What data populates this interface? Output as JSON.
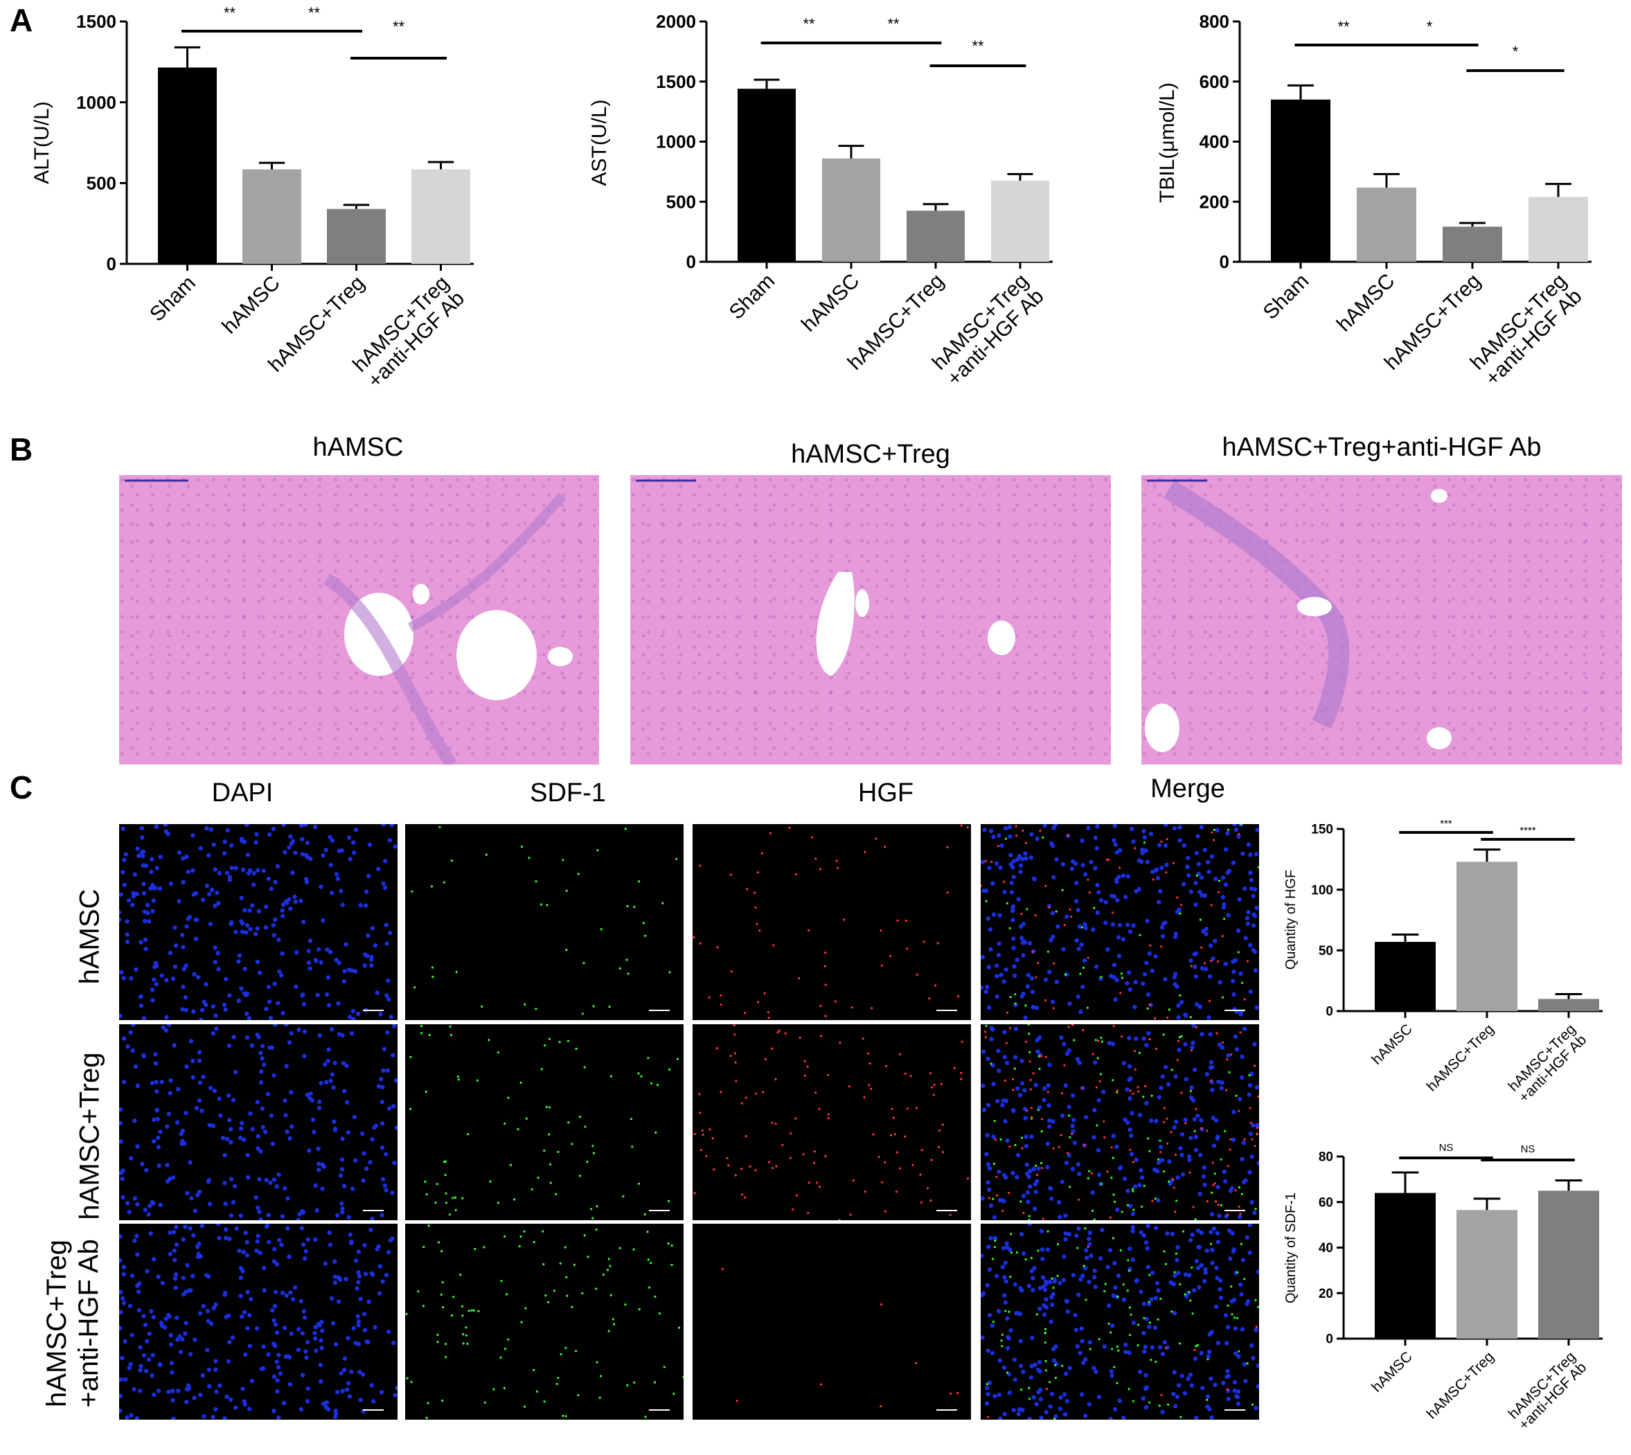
{
  "panel_labels": {
    "a": "A",
    "b": "B",
    "c": "C"
  },
  "he_titles": [
    "hAMSC",
    "hAMSC+Treg",
    "hAMSC+Treg+anti-HGF Ab"
  ],
  "if_columns": [
    "DAPI",
    "SDF-1",
    "HGF",
    "Merge"
  ],
  "if_rows": [
    {
      "line1": "hAMSC",
      "line2": ""
    },
    {
      "line1": "hAMSC+Treg",
      "line2": ""
    },
    {
      "line1": "hAMSC+Treg",
      "line2": "+anti-HGF Ab"
    }
  ],
  "colors": {
    "black": "#000000",
    "dark_gray": "#7f7f7f",
    "mid_gray": "#a3a3a6",
    "light_gray": "#d6d6d6",
    "he_pink": "#e79ad9",
    "dapi_blue": "#1a2fe0",
    "sdf_green": "#33ff33",
    "hgf_red": "#ff3344"
  },
  "chart_data": [
    {
      "type": "bar",
      "ylabel": "ALT(U/L)",
      "ylim": [
        0,
        1500
      ],
      "yticks": [
        0,
        500,
        1000,
        1500
      ],
      "categories": [
        [
          "Sham"
        ],
        [
          "hAMSC"
        ],
        [
          "hAMSC+Treg"
        ],
        [
          "hAMSC+Treg",
          "+anti-HGF Ab"
        ]
      ],
      "values": [
        1215,
        585,
        340,
        585
      ],
      "errors": [
        125,
        40,
        25,
        45
      ],
      "bar_colors": [
        "#000000",
        "#a3a3a6",
        "#7f7f7f",
        "#d6d6d6"
      ],
      "significance": [
        {
          "from": 0,
          "to": 1,
          "label": "**"
        },
        {
          "from": 1,
          "to": 2,
          "label": "**"
        },
        {
          "from": 2,
          "to": 3,
          "label": "**"
        }
      ]
    },
    {
      "type": "bar",
      "ylabel": "AST(U/L)",
      "ylim": [
        0,
        2000
      ],
      "yticks": [
        0,
        500,
        1000,
        1500,
        2000
      ],
      "categories": [
        [
          "Sham"
        ],
        [
          "hAMSC"
        ],
        [
          "hAMSC+Treg"
        ],
        [
          "hAMSC+Treg",
          "+anti-HGF Ab"
        ]
      ],
      "values": [
        1440,
        860,
        425,
        675
      ],
      "errors": [
        75,
        105,
        55,
        55
      ],
      "bar_colors": [
        "#000000",
        "#a3a3a6",
        "#7f7f7f",
        "#d6d6d6"
      ],
      "significance": [
        {
          "from": 0,
          "to": 1,
          "label": "**"
        },
        {
          "from": 1,
          "to": 2,
          "label": "**"
        },
        {
          "from": 2,
          "to": 3,
          "label": "**"
        }
      ]
    },
    {
      "type": "bar",
      "ylabel": "TBIL(μmol/L)",
      "ylim": [
        0,
        800
      ],
      "yticks": [
        0,
        200,
        400,
        600,
        800
      ],
      "categories": [
        [
          "Sham"
        ],
        [
          "hAMSC"
        ],
        [
          "hAMSC+Treg"
        ],
        [
          "hAMSC+Treg",
          "+anti-HGF Ab"
        ]
      ],
      "values": [
        540,
        247,
        117,
        216
      ],
      "errors": [
        47,
        45,
        12,
        43
      ],
      "bar_colors": [
        "#000000",
        "#a3a3a6",
        "#7f7f7f",
        "#d6d6d6"
      ],
      "significance": [
        {
          "from": 0,
          "to": 1,
          "label": "**"
        },
        {
          "from": 1,
          "to": 2,
          "label": "*"
        },
        {
          "from": 2,
          "to": 3,
          "label": "*"
        }
      ]
    },
    {
      "type": "bar",
      "ylabel": "Quantity of HGF",
      "ylim": [
        0,
        150
      ],
      "yticks": [
        0,
        50,
        100,
        150
      ],
      "categories": [
        [
          "hAMSC"
        ],
        [
          "hAMSC+Treg"
        ],
        [
          "hAMSC+Treg",
          "+anti-HGF Ab"
        ]
      ],
      "values": [
        57,
        123,
        10
      ],
      "errors": [
        6,
        10,
        4
      ],
      "bar_colors": [
        "#000000",
        "#a3a3a6",
        "#7f7f7f"
      ],
      "significance": [
        {
          "from": 0,
          "to": 1,
          "label": "***"
        },
        {
          "from": 1,
          "to": 2,
          "label": "****"
        }
      ]
    },
    {
      "type": "bar",
      "ylabel": "Quantity of SDF-1",
      "ylim": [
        0,
        80
      ],
      "yticks": [
        0,
        20,
        40,
        60,
        80
      ],
      "categories": [
        [
          "hAMSC"
        ],
        [
          "hAMSC+Treg"
        ],
        [
          "hAMSC+Treg",
          "+anti-HGF Ab"
        ]
      ],
      "values": [
        64,
        56.5,
        65
      ],
      "errors": [
        9,
        5,
        4.5
      ],
      "bar_colors": [
        "#000000",
        "#a3a3a6",
        "#7f7f7f"
      ],
      "significance": [
        {
          "from": 0,
          "to": 1,
          "label": "NS"
        },
        {
          "from": 1,
          "to": 2,
          "label": "NS"
        }
      ]
    }
  ]
}
